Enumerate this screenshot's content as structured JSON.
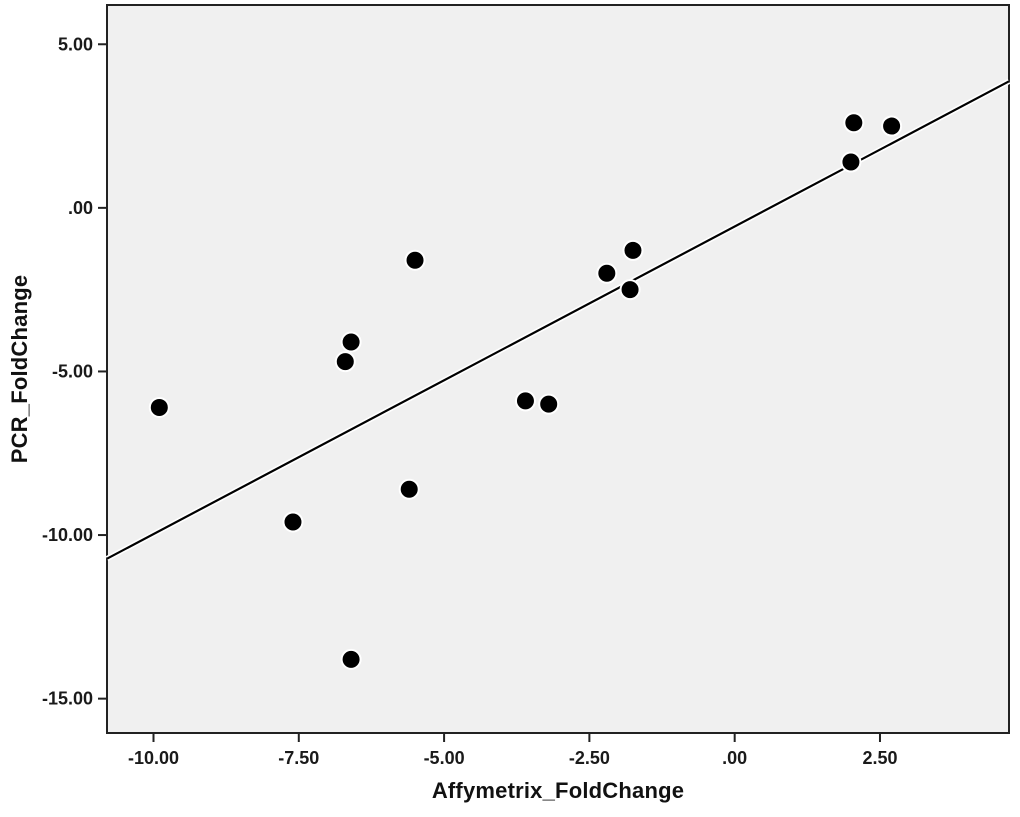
{
  "chart_data": {
    "type": "scatter",
    "title": "",
    "xlabel": "Affymetrix_FoldChange",
    "ylabel": "PCR_FoldChange",
    "xlim": [
      -10.8,
      4.72
    ],
    "ylim": [
      -16.05,
      6.2
    ],
    "grid": false,
    "legend": "none",
    "x_ticks": [
      {
        "value": -10,
        "label": "-10.00"
      },
      {
        "value": -7.5,
        "label": "-7.50"
      },
      {
        "value": -5,
        "label": "-5.00"
      },
      {
        "value": -2.5,
        "label": "-2.50"
      },
      {
        "value": 0,
        "label": ".00"
      },
      {
        "value": 2.5,
        "label": "2.50"
      }
    ],
    "y_ticks": [
      {
        "value": 5,
        "label": "5.00"
      },
      {
        "value": 0,
        "label": ".00"
      },
      {
        "value": -5,
        "label": "-5.00"
      },
      {
        "value": -10,
        "label": "-10.00"
      },
      {
        "value": -15,
        "label": "-15.00"
      }
    ],
    "points": [
      [
        -9.9,
        -6.1
      ],
      [
        -7.6,
        -9.6
      ],
      [
        -6.7,
        -4.7
      ],
      [
        -6.6,
        -4.1
      ],
      [
        -6.6,
        -13.8
      ],
      [
        -5.6,
        -8.6
      ],
      [
        -5.5,
        -1.6
      ],
      [
        -3.6,
        -5.9
      ],
      [
        -3.2,
        -6.0
      ],
      [
        -2.2,
        -2.0
      ],
      [
        -1.8,
        -2.5
      ],
      [
        -1.75,
        -1.3
      ],
      [
        2.0,
        1.4
      ],
      [
        2.05,
        2.6
      ],
      [
        2.7,
        2.5
      ]
    ],
    "fit_line": {
      "slope": 0.94,
      "intercept": -0.57
    },
    "colors": {
      "plot_bg": "#f0f0f0",
      "outer_bg": "#ffffff",
      "marker": "#000000",
      "marker_halo": "#ffffff",
      "line": "#000000",
      "border": "#222222",
      "text": "#111111"
    }
  }
}
